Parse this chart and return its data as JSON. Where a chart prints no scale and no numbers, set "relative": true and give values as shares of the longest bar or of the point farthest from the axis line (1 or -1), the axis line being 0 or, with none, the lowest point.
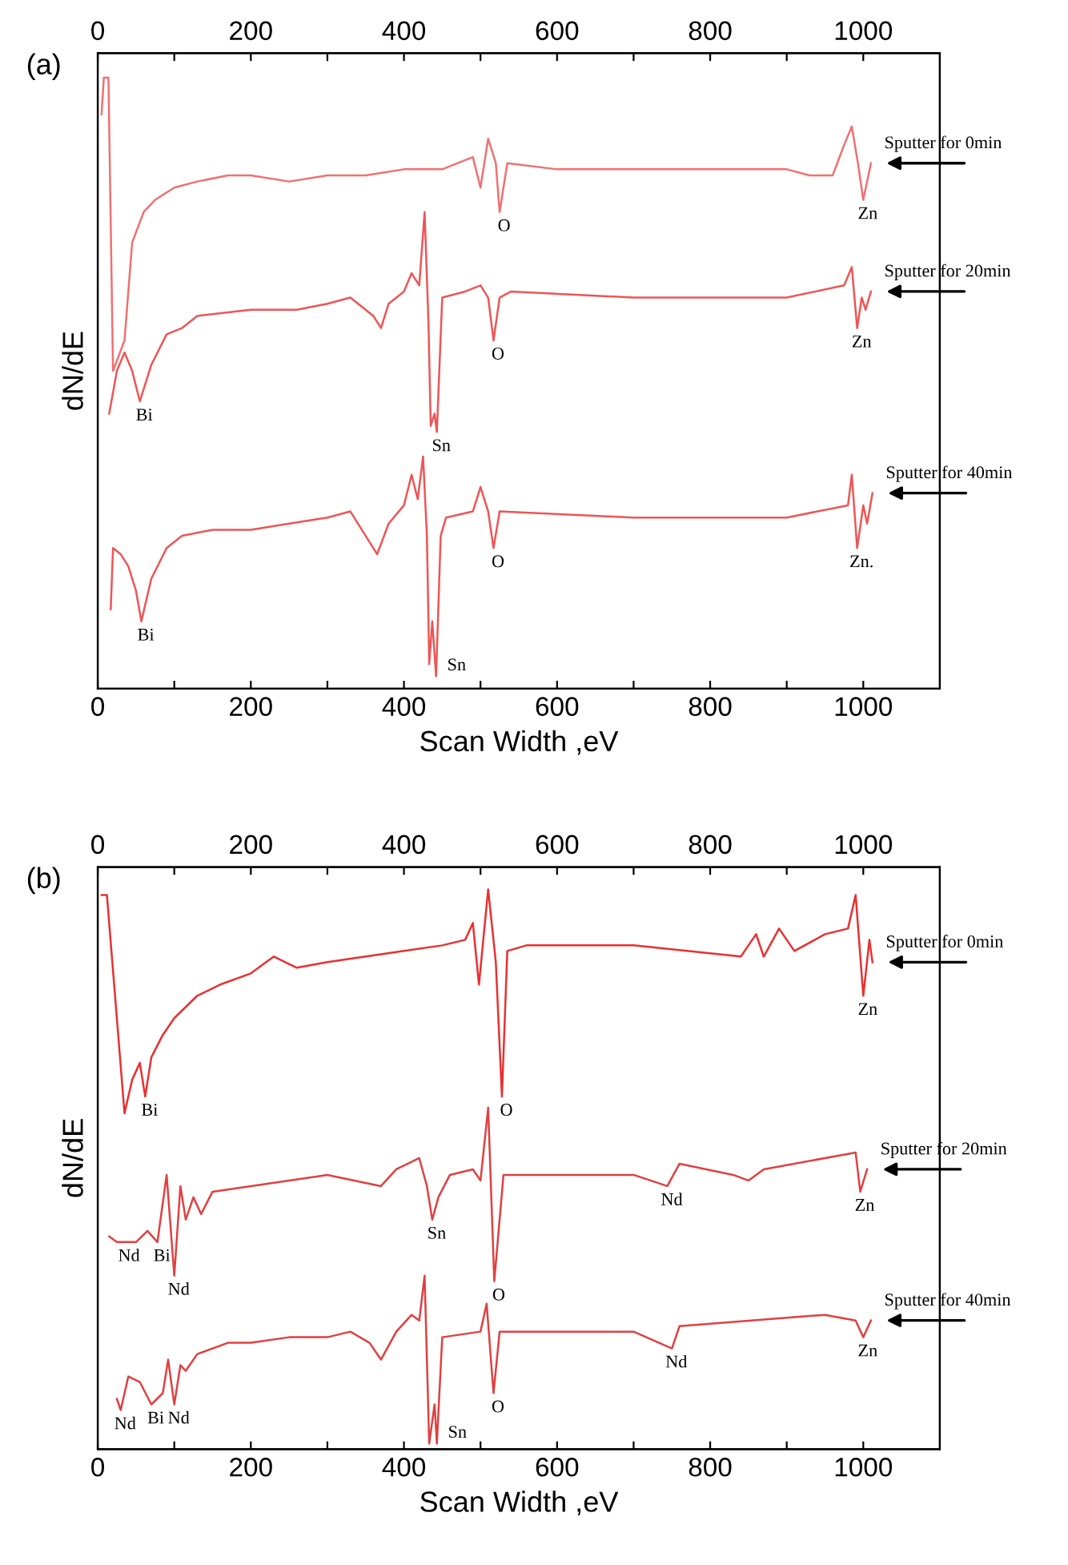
{
  "chart_data": [
    {
      "type": "line",
      "title": "(a)",
      "xlabel": "Scan Width ,eV",
      "ylabel": "dN/dE",
      "relative": true,
      "tick_labels": "x",
      "xlim": [
        0,
        1100
      ],
      "xticks": [
        0,
        {
          "value": 100,
          "label": null
        },
        200,
        {
          "value": 300,
          "label": null
        },
        400,
        {
          "value": 500,
          "label": null
        },
        600,
        {
          "value": 700,
          "label": null
        },
        800,
        {
          "value": 900,
          "label": null
        },
        1000
      ],
      "x2lim": [
        0,
        1100
      ],
      "x2ticks": [
        0,
        {
          "value": 100,
          "label": null
        },
        200,
        {
          "value": 300,
          "label": null
        },
        400,
        {
          "value": 500,
          "label": null
        },
        600,
        {
          "value": 700,
          "label": null
        },
        800,
        {
          "value": 900,
          "label": null
        },
        1000
      ],
      "series": [
        {
          "color": "#f07070",
          "x": [
            5,
            8,
            14,
            20,
            35,
            45,
            60,
            75,
            100,
            130,
            170,
            200,
            250,
            300,
            350,
            400,
            450,
            490,
            500,
            510,
            520,
            525,
            535,
            600,
            700,
            800,
            900,
            930,
            960,
            975,
            985,
            993,
            1000,
            1010
          ],
          "values": [
            0.94,
            1.0,
            1.0,
            0.52,
            0.57,
            0.73,
            0.78,
            0.8,
            0.82,
            0.83,
            0.84,
            0.84,
            0.83,
            0.84,
            0.84,
            0.85,
            0.85,
            0.87,
            0.82,
            0.9,
            0.86,
            0.78,
            0.86,
            0.85,
            0.85,
            0.85,
            0.85,
            0.84,
            0.84,
            0.89,
            0.92,
            0.86,
            0.8,
            0.86
          ]
        },
        {
          "color": "#ee5555",
          "x": [
            15,
            25,
            35,
            45,
            55,
            70,
            90,
            110,
            130,
            200,
            260,
            300,
            330,
            360,
            370,
            380,
            400,
            410,
            420,
            427,
            432,
            435,
            440,
            443,
            450,
            480,
            500,
            510,
            517,
            525,
            540,
            700,
            900,
            975,
            985,
            992,
            998,
            1003,
            1010
          ],
          "values": [
            0.45,
            0.52,
            0.55,
            0.52,
            0.47,
            0.53,
            0.58,
            0.59,
            0.61,
            0.62,
            0.62,
            0.63,
            0.64,
            0.61,
            0.59,
            0.63,
            0.65,
            0.68,
            0.66,
            0.78,
            0.6,
            0.43,
            0.45,
            0.42,
            0.64,
            0.65,
            0.66,
            0.64,
            0.57,
            0.64,
            0.65,
            0.64,
            0.64,
            0.66,
            0.69,
            0.59,
            0.64,
            0.62,
            0.65
          ]
        },
        {
          "color": "#ee5555",
          "x": [
            17,
            20,
            30,
            40,
            50,
            57,
            70,
            90,
            110,
            150,
            200,
            250,
            300,
            330,
            350,
            365,
            380,
            400,
            410,
            418,
            425,
            430,
            433,
            437,
            442,
            448,
            455,
            490,
            500,
            510,
            517,
            525,
            700,
            900,
            980,
            985,
            992,
            1000,
            1005,
            1012
          ],
          "values": [
            0.13,
            0.23,
            0.22,
            0.2,
            0.16,
            0.11,
            0.18,
            0.23,
            0.25,
            0.26,
            0.26,
            0.27,
            0.28,
            0.29,
            0.25,
            0.22,
            0.27,
            0.3,
            0.35,
            0.31,
            0.38,
            0.25,
            0.04,
            0.11,
            0.02,
            0.25,
            0.28,
            0.29,
            0.33,
            0.29,
            0.23,
            0.29,
            0.28,
            0.28,
            0.3,
            0.35,
            0.23,
            0.3,
            0.27,
            0.32
          ]
        }
      ],
      "annotations": [
        {
          "text": "Bi",
          "x": 55,
          "y": 0.47
        },
        {
          "text": "Bi",
          "x": 57,
          "y": 0.11
        },
        {
          "text": "Sn",
          "x": 443,
          "y": 0.42
        },
        {
          "text": "Sn",
          "x": 442,
          "y": 0.02
        },
        {
          "text": "O",
          "x": 525,
          "y": 0.78
        },
        {
          "text": "O",
          "x": 517,
          "y": 0.57
        },
        {
          "text": "O",
          "x": 517,
          "y": 0.23
        },
        {
          "text": "Zn",
          "x": 1000,
          "y": 0.8
        },
        {
          "text": "Zn",
          "x": 992,
          "y": 0.59
        },
        {
          "text": "Zn.",
          "x": 992,
          "y": 0.23
        },
        {
          "text": "Sputter for 0min",
          "x": 1010,
          "y": 0.86
        },
        {
          "text": "Sputter for 20min",
          "x": 1010,
          "y": 0.65
        },
        {
          "text": "Sputter for 40min",
          "x": 1012,
          "y": 0.32
        }
      ]
    },
    {
      "type": "line",
      "title": "(b)",
      "xlabel": "Scan Width ,eV",
      "ylabel": "dN/dE",
      "relative": true,
      "tick_labels": "x",
      "xlim": [
        0,
        1100
      ],
      "xticks": [
        0,
        {
          "value": 100,
          "label": null
        },
        200,
        {
          "value": 300,
          "label": null
        },
        400,
        {
          "value": 500,
          "label": null
        },
        600,
        {
          "value": 700,
          "label": null
        },
        800,
        {
          "value": 900,
          "label": null
        },
        1000
      ],
      "x2lim": [
        0,
        1100
      ],
      "x2ticks": [
        0,
        {
          "value": 100,
          "label": null
        },
        200,
        {
          "value": 300,
          "label": null
        },
        400,
        {
          "value": 500,
          "label": null
        },
        600,
        {
          "value": 700,
          "label": null
        },
        800,
        {
          "value": 900,
          "label": null
        },
        1000
      ],
      "series": [
        {
          "color": "#e83030",
          "x": [
            5,
            12,
            35,
            45,
            55,
            62,
            70,
            85,
            100,
            130,
            160,
            200,
            230,
            260,
            300,
            350,
            400,
            450,
            480,
            490,
            498,
            510,
            520,
            528,
            535,
            560,
            700,
            840,
            860,
            870,
            890,
            910,
            950,
            980,
            990,
            995,
            1000,
            1008,
            1012
          ],
          "values": [
            0.99,
            0.99,
            0.6,
            0.66,
            0.69,
            0.63,
            0.7,
            0.74,
            0.77,
            0.81,
            0.83,
            0.85,
            0.88,
            0.86,
            0.87,
            0.88,
            0.89,
            0.9,
            0.91,
            0.94,
            0.83,
            1.0,
            0.87,
            0.63,
            0.89,
            0.9,
            0.9,
            0.88,
            0.92,
            0.88,
            0.93,
            0.89,
            0.92,
            0.93,
            0.99,
            0.9,
            0.81,
            0.91,
            0.87
          ]
        },
        {
          "color": "#e04040",
          "x": [
            15,
            25,
            35,
            50,
            65,
            78,
            90,
            100,
            108,
            115,
            125,
            135,
            150,
            200,
            250,
            300,
            370,
            390,
            420,
            430,
            437,
            445,
            460,
            490,
            500,
            510,
            518,
            530,
            700,
            744,
            760,
            830,
            850,
            870,
            990,
            996,
            1005
          ],
          "values": [
            0.38,
            0.37,
            0.37,
            0.37,
            0.39,
            0.37,
            0.49,
            0.31,
            0.47,
            0.41,
            0.45,
            0.42,
            0.46,
            0.47,
            0.48,
            0.49,
            0.47,
            0.5,
            0.52,
            0.47,
            0.41,
            0.45,
            0.49,
            0.5,
            0.48,
            0.61,
            0.3,
            0.49,
            0.49,
            0.47,
            0.51,
            0.49,
            0.48,
            0.5,
            0.53,
            0.46,
            0.5
          ]
        },
        {
          "color": "#e04040",
          "x": [
            25,
            30,
            40,
            55,
            70,
            85,
            92,
            100,
            108,
            115,
            130,
            170,
            200,
            250,
            300,
            330,
            355,
            370,
            390,
            410,
            420,
            427,
            433,
            440,
            443,
            450,
            500,
            508,
            517,
            525,
            700,
            750,
            760,
            950,
            990,
            1000,
            1010
          ],
          "values": [
            0.09,
            0.07,
            0.13,
            0.12,
            0.08,
            0.1,
            0.16,
            0.08,
            0.15,
            0.14,
            0.17,
            0.19,
            0.19,
            0.2,
            0.2,
            0.21,
            0.19,
            0.16,
            0.21,
            0.24,
            0.23,
            0.31,
            0.01,
            0.08,
            0.01,
            0.2,
            0.21,
            0.26,
            0.1,
            0.21,
            0.21,
            0.18,
            0.22,
            0.24,
            0.23,
            0.2,
            0.23
          ]
        }
      ],
      "annotations": [
        {
          "text": "Bi",
          "x": 62,
          "y": 0.63
        },
        {
          "text": "O",
          "x": 528,
          "y": 0.63
        },
        {
          "text": "Zn",
          "x": 1000,
          "y": 0.81
        },
        {
          "text": "Nd",
          "x": 35,
          "y": 0.37
        },
        {
          "text": "Bi",
          "x": 78,
          "y": 0.37
        },
        {
          "text": "Nd",
          "x": 100,
          "y": 0.31
        },
        {
          "text": "Sn",
          "x": 437,
          "y": 0.41
        },
        {
          "text": "O",
          "x": 518,
          "y": 0.3
        },
        {
          "text": "Nd",
          "x": 744,
          "y": 0.47
        },
        {
          "text": "Zn",
          "x": 996,
          "y": 0.46
        },
        {
          "text": "Nd",
          "x": 30,
          "y": 0.07
        },
        {
          "text": "Bi",
          "x": 70,
          "y": 0.08
        },
        {
          "text": "Nd",
          "x": 100,
          "y": 0.08
        },
        {
          "text": "Sn",
          "x": 443,
          "y": 0.01
        },
        {
          "text": "O",
          "x": 517,
          "y": 0.1
        },
        {
          "text": "Nd",
          "x": 750,
          "y": 0.18
        },
        {
          "text": "Zn",
          "x": 1000,
          "y": 0.2
        },
        {
          "text": "Sputter for 0min",
          "x": 1012,
          "y": 0.87
        },
        {
          "text": "Sputter for 20min",
          "x": 1005,
          "y": 0.5
        },
        {
          "text": "Sputter for 40min",
          "x": 1010,
          "y": 0.23
        }
      ]
    }
  ]
}
